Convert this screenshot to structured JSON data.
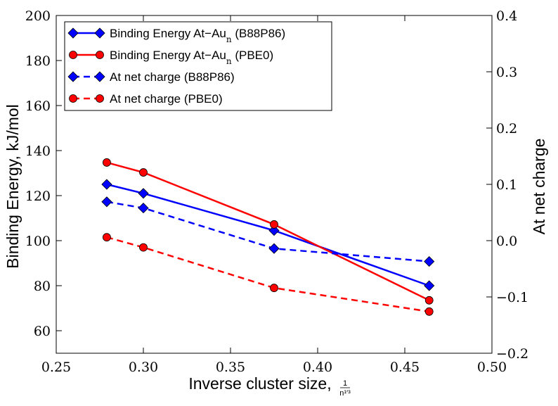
{
  "chart_data": {
    "type": "line",
    "xlabel": "Inverse cluster size,",
    "xlabel_fraction": {
      "numerator": "1",
      "denominator": "n¹′³"
    },
    "ylabel": "Binding Energy, kJ/mol",
    "y2label": "At net charge",
    "xlim": [
      0.25,
      0.5
    ],
    "ylim": [
      50,
      200
    ],
    "y2lim": [
      -0.2,
      0.4
    ],
    "x_ticks": [
      0.25,
      0.3,
      0.35,
      0.4,
      0.45,
      0.5
    ],
    "x_tick_labels": [
      "0.25",
      "0.30",
      "0.35",
      "0.40",
      "0.45",
      "0.50"
    ],
    "y_ticks": [
      60,
      80,
      100,
      120,
      140,
      160,
      180,
      200
    ],
    "y_tick_labels": [
      "60",
      "80",
      "100",
      "120",
      "140",
      "160",
      "180",
      "200"
    ],
    "y2_ticks": [
      -0.2,
      -0.1,
      0.0,
      0.1,
      0.2,
      0.3,
      0.4
    ],
    "y2_tick_labels": [
      "−0.2",
      "−0.1",
      "0.0",
      "0.1",
      "0.2",
      "0.3",
      "0.4"
    ],
    "grid": false,
    "legend_position": "top-left",
    "series": [
      {
        "name": "Binding Energy At−Au",
        "name_sub": "n",
        "name_suffix": " (B88P86)",
        "axis": "left",
        "color": "#0000ff",
        "linestyle": "solid",
        "marker": "diamond",
        "x": [
          0.279,
          0.3,
          0.375,
          0.464
        ],
        "y": [
          125,
          121,
          104.5,
          80
        ]
      },
      {
        "name": "Binding Energy At−Au",
        "name_sub": "n",
        "name_suffix": " (PBE0)",
        "axis": "left",
        "color": "#ff0000",
        "linestyle": "solid",
        "marker": "circle",
        "x": [
          0.279,
          0.3,
          0.375,
          0.464
        ],
        "y": [
          134.7,
          130.3,
          107.2,
          73.5
        ]
      },
      {
        "name": "At net charge (B88P86)",
        "axis": "right",
        "color": "#0000ff",
        "linestyle": "dashed",
        "marker": "diamond",
        "x": [
          0.279,
          0.3,
          0.375,
          0.464
        ],
        "y": [
          0.069,
          0.058,
          -0.014,
          -0.037
        ]
      },
      {
        "name": "At net charge (PBE0)",
        "axis": "right",
        "color": "#ff0000",
        "linestyle": "dashed",
        "marker": "circle",
        "x": [
          0.279,
          0.3,
          0.375,
          0.464
        ],
        "y": [
          0.006,
          -0.012,
          -0.084,
          -0.126
        ]
      }
    ]
  }
}
